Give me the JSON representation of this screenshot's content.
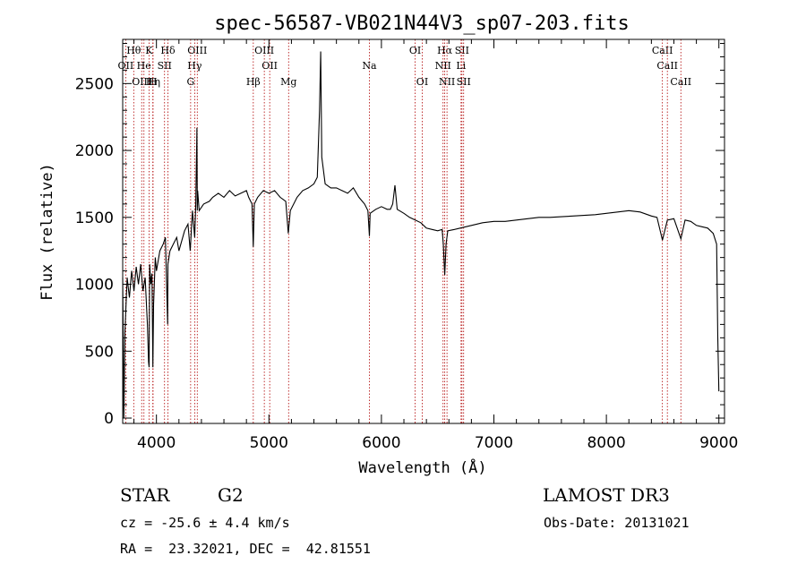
{
  "chart_data": {
    "type": "line",
    "title": "spec-56587-VB021N44V3_sp07-203.fits",
    "xlabel": "Wavelength (Å)",
    "ylabel": "Flux (relative)",
    "xlim": [
      3700,
      9050
    ],
    "ylim": [
      -40,
      2830
    ],
    "xticks": [
      4000,
      5000,
      6000,
      7000,
      8000,
      9000
    ],
    "yticks": [
      0,
      500,
      1000,
      1500,
      2000,
      2500
    ],
    "grid": false,
    "series": [
      {
        "name": "flux",
        "x": [
          3700,
          3710,
          3720,
          3740,
          3760,
          3780,
          3800,
          3820,
          3840,
          3860,
          3880,
          3900,
          3920,
          3930,
          3935,
          3940,
          3950,
          3960,
          3968,
          3975,
          3990,
          4000,
          4030,
          4060,
          4080,
          4100,
          4102,
          4120,
          4150,
          4180,
          4200,
          4250,
          4280,
          4300,
          4320,
          4340,
          4350,
          4360,
          4363,
          4366,
          4380,
          4420,
          4470,
          4500,
          4550,
          4600,
          4650,
          4700,
          4750,
          4800,
          4820,
          4850,
          4861,
          4870,
          4900,
          4950,
          5000,
          5050,
          5100,
          5150,
          5172,
          5190,
          5250,
          5300,
          5350,
          5400,
          5430,
          5450,
          5460,
          5470,
          5500,
          5550,
          5600,
          5650,
          5700,
          5750,
          5800,
          5850,
          5880,
          5893,
          5900,
          5950,
          6000,
          6050,
          6080,
          6100,
          6120,
          6140,
          6200,
          6250,
          6300,
          6350,
          6400,
          6450,
          6500,
          6540,
          6550,
          6563,
          6575,
          6590,
          6650,
          6700,
          6750,
          6800,
          6850,
          6900,
          7000,
          7100,
          7200,
          7300,
          7400,
          7500,
          7600,
          7700,
          7800,
          7900,
          8000,
          8100,
          8200,
          8300,
          8400,
          8450,
          8498,
          8542,
          8600,
          8662,
          8700,
          8750,
          8800,
          8850,
          8900,
          8950,
          8980,
          8990,
          9000
        ],
        "y": [
          1050,
          0,
          650,
          1050,
          900,
          1100,
          950,
          1130,
          1000,
          1150,
          950,
          1050,
          700,
          420,
          380,
          1150,
          1000,
          1080,
          380,
          850,
          1200,
          1100,
          1250,
          1300,
          1350,
          700,
          1150,
          1250,
          1300,
          1350,
          1250,
          1400,
          1450,
          1250,
          1550,
          1350,
          1600,
          2170,
          1550,
          1700,
          1550,
          1600,
          1620,
          1650,
          1680,
          1650,
          1700,
          1660,
          1680,
          1700,
          1650,
          1600,
          1280,
          1600,
          1650,
          1700,
          1680,
          1700,
          1650,
          1620,
          1380,
          1550,
          1650,
          1700,
          1720,
          1750,
          1800,
          2300,
          2740,
          1950,
          1750,
          1720,
          1720,
          1700,
          1680,
          1720,
          1650,
          1600,
          1550,
          1360,
          1530,
          1560,
          1580,
          1560,
          1560,
          1600,
          1740,
          1560,
          1530,
          1500,
          1480,
          1460,
          1420,
          1410,
          1400,
          1410,
          1300,
          1070,
          1300,
          1400,
          1410,
          1420,
          1430,
          1440,
          1450,
          1460,
          1470,
          1470,
          1480,
          1490,
          1500,
          1500,
          1505,
          1510,
          1515,
          1520,
          1530,
          1540,
          1550,
          1540,
          1510,
          1500,
          1330,
          1480,
          1490,
          1340,
          1480,
          1470,
          1440,
          1430,
          1420,
          1380,
          1300,
          600,
          200
        ]
      }
    ],
    "line_ids": [
      {
        "name": "OII",
        "wl": 3727,
        "row": 1,
        "pos": "top"
      },
      {
        "name": "Hθ",
        "wl": 3798,
        "row": 0,
        "pos": "top"
      },
      {
        "name": "OIII",
        "wl": 3869,
        "row": 2,
        "pos": "top"
      },
      {
        "name": "He",
        "wl": 3889,
        "row": 1,
        "pos": "top"
      },
      {
        "name": "K",
        "wl": 3934,
        "row": 0,
        "pos": "top"
      },
      {
        "name": "Hη",
        "wl": 3970,
        "row": 2,
        "pos": "top"
      },
      {
        "name": "SII",
        "wl": 4072,
        "row": 1,
        "pos": "top"
      },
      {
        "name": "Hδ",
        "wl": 4102,
        "row": 0,
        "pos": "top"
      },
      {
        "name": "H",
        "wl": 3968,
        "row": 2,
        "pos": "top"
      },
      {
        "name": "OIII",
        "wl": 4363,
        "row": 0,
        "pos": "top"
      },
      {
        "name": "Hγ",
        "wl": 4340,
        "row": 1,
        "pos": "top"
      },
      {
        "name": "G",
        "wl": 4304,
        "row": 2,
        "pos": "top"
      },
      {
        "name": "Hβ",
        "wl": 4861,
        "row": 2,
        "pos": "top"
      },
      {
        "name": "OIII",
        "wl": 4959,
        "row": 0,
        "pos": "top"
      },
      {
        "name": "OII",
        "wl": 5007,
        "row": 1,
        "pos": "top"
      },
      {
        "name": "Mg",
        "wl": 5175,
        "row": 2,
        "pos": "top"
      },
      {
        "name": "Na",
        "wl": 5893,
        "row": 1,
        "pos": "top"
      },
      {
        "name": "OI",
        "wl": 6300,
        "row": 0,
        "pos": "top"
      },
      {
        "name": "OI",
        "wl": 6363,
        "row": 2,
        "pos": "top"
      },
      {
        "name": "Hα",
        "wl": 6563,
        "row": 0,
        "pos": "top"
      },
      {
        "name": "NII",
        "wl": 6548,
        "row": 1,
        "pos": "top"
      },
      {
        "name": "NII",
        "wl": 6583,
        "row": 2,
        "pos": "top"
      },
      {
        "name": "SII",
        "wl": 6716,
        "row": 0,
        "pos": "top"
      },
      {
        "name": "Li",
        "wl": 6708,
        "row": 1,
        "pos": "top"
      },
      {
        "name": "SII",
        "wl": 6731,
        "row": 2,
        "pos": "top"
      },
      {
        "name": "CaII",
        "wl": 8498,
        "row": 0,
        "pos": "top"
      },
      {
        "name": "CaII",
        "wl": 8542,
        "row": 1,
        "pos": "top"
      },
      {
        "name": "CaII",
        "wl": 8662,
        "row": 2,
        "pos": "top"
      }
    ]
  },
  "info": {
    "object_type": "STAR",
    "subclass": "G2",
    "survey": "LAMOST DR3",
    "redshift": "cz = -25.6 ± 4.4 km/s",
    "obs_date": "Obs-Date: 20131021",
    "coords": "RA =  23.32021, DEC =  42.81551"
  }
}
